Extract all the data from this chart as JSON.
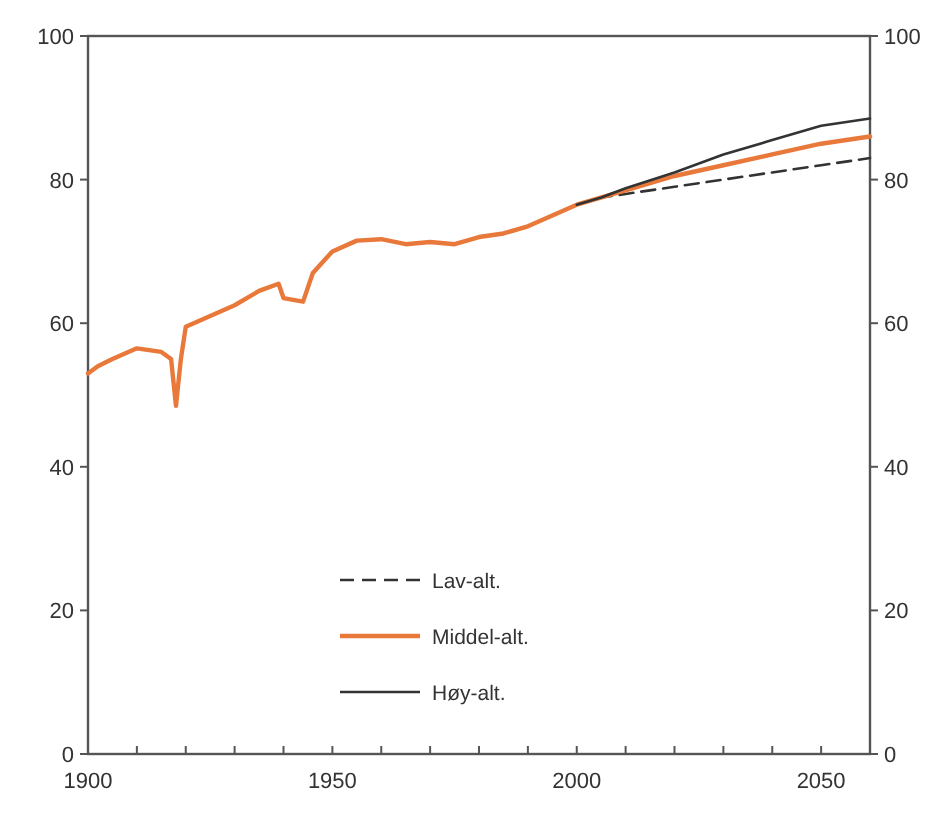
{
  "chart_data": {
    "type": "line",
    "xlim": [
      1900,
      2060
    ],
    "xticks": [
      1900,
      {
        "value": 1910,
        "label": null
      },
      {
        "value": 1920,
        "label": null
      },
      {
        "value": 1930,
        "label": null
      },
      {
        "value": 1940,
        "label": null
      },
      1950,
      {
        "value": 1960,
        "label": null
      },
      {
        "value": 1970,
        "label": null
      },
      {
        "value": 1980,
        "label": null
      },
      {
        "value": 1990,
        "label": null
      },
      2000,
      {
        "value": 2010,
        "label": null
      },
      {
        "value": 2020,
        "label": null
      },
      {
        "value": 2030,
        "label": null
      },
      {
        "value": 2040,
        "label": null
      },
      2050
    ],
    "ylim": [
      0,
      100
    ],
    "yticks": [
      0,
      20,
      40,
      60,
      80,
      100
    ],
    "y2lim": [
      0,
      100
    ],
    "y2ticks": [
      0,
      20,
      40,
      60,
      80,
      100
    ],
    "legend": "bottom",
    "series": [
      {
        "name": "Lav-alt.",
        "color": "#333333",
        "line_style": "dashed",
        "x": [
          2000,
          2005,
          2010,
          2020,
          2030,
          2040,
          2050,
          2060
        ],
        "values": [
          76.5,
          77.5,
          78,
          79,
          80,
          81,
          82,
          83
        ]
      },
      {
        "name": "Middel-alt.",
        "color": "#e8793a",
        "line_style": "solid",
        "x": [
          1900,
          1902,
          1905,
          1910,
          1915,
          1917,
          1918,
          1919,
          1920,
          1925,
          1930,
          1935,
          1939,
          1940,
          1944,
          1946,
          1950,
          1955,
          1960,
          1965,
          1970,
          1975,
          1980,
          1985,
          1990,
          1995,
          2000,
          2010,
          2020,
          2030,
          2040,
          2050,
          2060
        ],
        "values": [
          53,
          54,
          55,
          56.5,
          56,
          55,
          48.5,
          55,
          59.5,
          61,
          62.5,
          64.5,
          65.5,
          63.5,
          63,
          67,
          70,
          71.5,
          71.7,
          71,
          71.3,
          71,
          72,
          72.5,
          73.5,
          75,
          76.5,
          78.5,
          80.5,
          82,
          83.5,
          85,
          86
        ]
      },
      {
        "name": "Høy-alt.",
        "color": "#333333",
        "line_style": "solid",
        "x": [
          2000,
          2005,
          2010,
          2020,
          2030,
          2040,
          2050,
          2060
        ],
        "values": [
          76.5,
          77.5,
          78.8,
          81,
          83.5,
          85.5,
          87.5,
          88.5
        ]
      }
    ]
  }
}
